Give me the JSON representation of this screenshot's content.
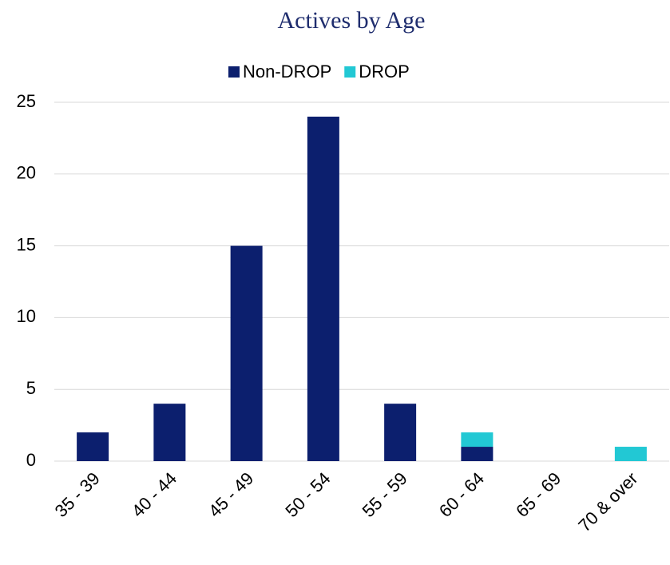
{
  "chart_data": {
    "type": "stacked_bar",
    "title": "Actives by Age",
    "categories": [
      "35 - 39",
      "40 - 44",
      "45 - 49",
      "50 - 54",
      "55 - 59",
      "60 - 64",
      "65 - 69",
      "70 & over"
    ],
    "series": [
      {
        "name": "Non-DROP",
        "color": "#0c1f6e",
        "values": [
          2,
          4,
          15,
          24,
          4,
          1,
          0,
          0
        ]
      },
      {
        "name": "DROP",
        "color": "#22c8d4",
        "values": [
          0,
          0,
          0,
          0,
          0,
          1,
          0,
          1
        ]
      }
    ],
    "ylim": [
      0,
      25
    ],
    "yticks": [
      0,
      5,
      10,
      15,
      20,
      25
    ],
    "grid": true,
    "legend": "top"
  }
}
